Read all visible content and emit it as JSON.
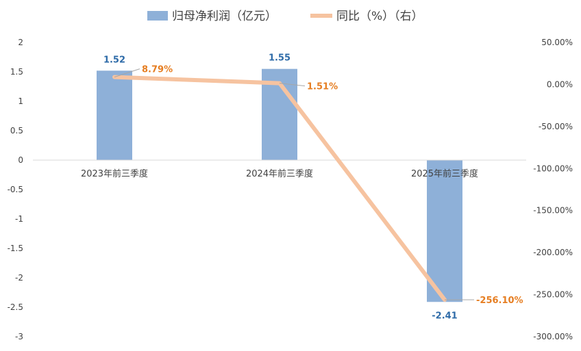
{
  "chart_data": {
    "type": "bar",
    "categories": [
      "2023年前三季度",
      "2024年前三季度",
      "2025年前三季度"
    ],
    "series": [
      {
        "name": "归母净利润（亿元）",
        "type": "bar",
        "axis": "left",
        "values": [
          1.52,
          1.55,
          -2.41
        ],
        "labels": [
          "1.52",
          "1.55",
          "-2.41"
        ],
        "color": "#8EB0D8",
        "label_color": "#2E6BA8"
      },
      {
        "name": "同比（%）（右）",
        "type": "line",
        "axis": "right",
        "values": [
          8.79,
          1.51,
          -256.1
        ],
        "labels": [
          "8.79%",
          "1.51%",
          "-256.10%"
        ],
        "color": "#F6C3A0",
        "label_color": "#E67E22"
      }
    ],
    "y_left": {
      "range": [
        -3,
        2
      ],
      "ticks": [
        2,
        1.5,
        1,
        0.5,
        0,
        -0.5,
        -1,
        -1.5,
        -2,
        -2.5,
        -3
      ],
      "tick_labels": [
        "2",
        "1.5",
        "1",
        "0.5",
        "0",
        "-0.5",
        "-1",
        "-1.5",
        "-2",
        "-2.5",
        "-3"
      ]
    },
    "y_right": {
      "range": [
        -300,
        50
      ],
      "ticks": [
        50,
        0,
        -50,
        -100,
        -150,
        -200,
        -250,
        -300
      ],
      "tick_labels": [
        "50.00%",
        "0.00%",
        "-50.00%",
        "-100.00%",
        "-150.00%",
        "-200.00%",
        "-250.00%",
        "-300.00%"
      ]
    },
    "grid": false,
    "legend_position": "top"
  }
}
